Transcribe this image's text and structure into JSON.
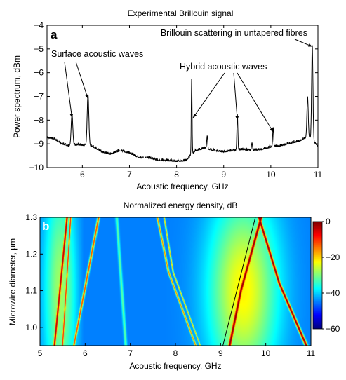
{
  "chart_data": [
    {
      "type": "line",
      "panel_label": "a",
      "title": "Experimental Brillouin signal",
      "xlabel": "Acoustic frequency, GHz",
      "ylabel": "Power spectrum, dBm",
      "xlim": [
        5.25,
        11.0
      ],
      "ylim": [
        -10,
        -4
      ],
      "xticks": [
        6,
        7,
        8,
        9,
        10,
        11
      ],
      "yticks": [
        -10,
        -9,
        -8,
        -7,
        -6,
        -5,
        -4
      ],
      "grid": false,
      "baseline": [
        [
          5.25,
          -8.75
        ],
        [
          5.4,
          -8.8
        ],
        [
          5.55,
          -9.0
        ],
        [
          5.7,
          -9.1
        ],
        [
          5.9,
          -9.05
        ],
        [
          6.2,
          -9.1
        ],
        [
          6.4,
          -9.35
        ],
        [
          6.6,
          -9.45
        ],
        [
          6.8,
          -9.3
        ],
        [
          7.0,
          -9.4
        ],
        [
          7.2,
          -9.6
        ],
        [
          7.4,
          -9.6
        ],
        [
          7.6,
          -9.7
        ],
        [
          7.8,
          -9.72
        ],
        [
          8.0,
          -9.75
        ],
        [
          8.2,
          -9.72
        ],
        [
          8.4,
          -9.3
        ],
        [
          8.6,
          -9.2
        ],
        [
          8.8,
          -9.3
        ],
        [
          9.0,
          -9.35
        ],
        [
          9.2,
          -9.3
        ],
        [
          9.4,
          -9.25
        ],
        [
          9.6,
          -9.3
        ],
        [
          9.8,
          -9.25
        ],
        [
          10.0,
          -9.15
        ],
        [
          10.2,
          -9.1
        ],
        [
          10.4,
          -9.0
        ],
        [
          10.6,
          -8.9
        ],
        [
          10.8,
          -8.7
        ],
        [
          11.0,
          -9.1
        ]
      ],
      "peaks": [
        {
          "x": 5.78,
          "y": -7.75,
          "width": 0.025
        },
        {
          "x": 6.12,
          "y": -6.9,
          "width": 0.025
        },
        {
          "x": 8.32,
          "y": -6.2,
          "width": 0.012
        },
        {
          "x": 8.65,
          "y": -8.65,
          "width": 0.015
        },
        {
          "x": 9.29,
          "y": -7.75,
          "width": 0.015
        },
        {
          "x": 9.6,
          "y": -8.95,
          "width": 0.015
        },
        {
          "x": 10.05,
          "y": -8.3,
          "width": 0.015
        },
        {
          "x": 10.88,
          "y": -4.82,
          "width": 0.02
        },
        {
          "x": 10.78,
          "y": -7.0,
          "width": 0.02
        }
      ],
      "annotations": [
        {
          "text": "Surface acoustic waves",
          "arrow_targets": [
            [
              5.78,
              -7.9
            ],
            [
              6.12,
              -7.1
            ]
          ]
        },
        {
          "text": "Hybrid acoustic waves",
          "arrow_targets": [
            [
              8.35,
              -7.9
            ],
            [
              9.29,
              -8.0
            ],
            [
              10.05,
              -8.5
            ]
          ]
        },
        {
          "text": "Brillouin scattering in untapered fibres",
          "arrow_targets": [
            [
              10.88,
              -4.9
            ]
          ]
        }
      ]
    },
    {
      "type": "heatmap",
      "panel_label": "b",
      "title": "Normalized energy density, dB",
      "xlabel": "Acoustic frequency, GHz",
      "ylabel": "Microwire diameter, μm",
      "xlim": [
        5,
        11
      ],
      "ylim": [
        0.95,
        1.3
      ],
      "xticks": [
        5,
        6,
        7,
        8,
        9,
        10,
        11
      ],
      "yticks": [
        1.0,
        1.1,
        1.2,
        1.3
      ],
      "ytick_labels": [
        "1.0",
        "1.1",
        "1.2",
        "1.3"
      ],
      "colorbar": {
        "min": -60,
        "max": 0,
        "ticks": [
          0,
          -20,
          -40,
          -60
        ],
        "colormap": "jet"
      },
      "background_level": -45,
      "modes": [
        {
          "points": [
            [
              5.32,
              0.95
            ],
            [
              5.6,
              1.3
            ]
          ],
          "peak_dB": -2,
          "width": 0.03
        },
        {
          "points": [
            [
              5.5,
              0.95
            ],
            [
              5.68,
              1.3
            ]
          ],
          "peak_dB": -8,
          "width": 0.02
        },
        {
          "points": [
            [
              5.75,
              0.95
            ],
            [
              6.3,
              1.3
            ]
          ],
          "peak_dB": -10,
          "width": 0.025
        },
        {
          "points": [
            [
              6.9,
              0.95
            ],
            [
              6.7,
              1.3
            ]
          ],
          "peak_dB": -32,
          "width": 0.03
        },
        {
          "points": [
            [
              8.45,
              0.95
            ],
            [
              7.85,
              1.15
            ],
            [
              7.6,
              1.3
            ]
          ],
          "peak_dB": -14,
          "width": 0.02
        },
        {
          "points": [
            [
              8.55,
              0.95
            ],
            [
              7.95,
              1.15
            ],
            [
              7.75,
              1.3
            ]
          ],
          "peak_dB": -18,
          "width": 0.015
        },
        {
          "points": [
            [
              9.2,
              0.95
            ],
            [
              9.45,
              1.1
            ],
            [
              9.9,
              1.3
            ]
          ],
          "peak_dB": 0,
          "width": 0.04
        },
        {
          "points": [
            [
              10.9,
              0.95
            ],
            [
              10.3,
              1.12
            ],
            [
              9.85,
              1.3
            ]
          ],
          "peak_dB": 0,
          "width": 0.035
        }
      ],
      "broad_regions": [
        {
          "center": [
            9.5,
            1.1
          ],
          "sx": 0.75,
          "sy": 0.25,
          "level_dB": -22
        },
        {
          "center": [
            6.6,
            1.1
          ],
          "sx": 0.5,
          "sy": 0.25,
          "level_dB": -55
        },
        {
          "center": [
            5.45,
            1.1
          ],
          "sx": 0.35,
          "sy": 0.3,
          "level_dB": -28
        }
      ],
      "overlay_line": {
        "from": [
          9.05,
          0.95
        ],
        "to": [
          9.77,
          1.3
        ],
        "color": "#000000"
      }
    }
  ]
}
